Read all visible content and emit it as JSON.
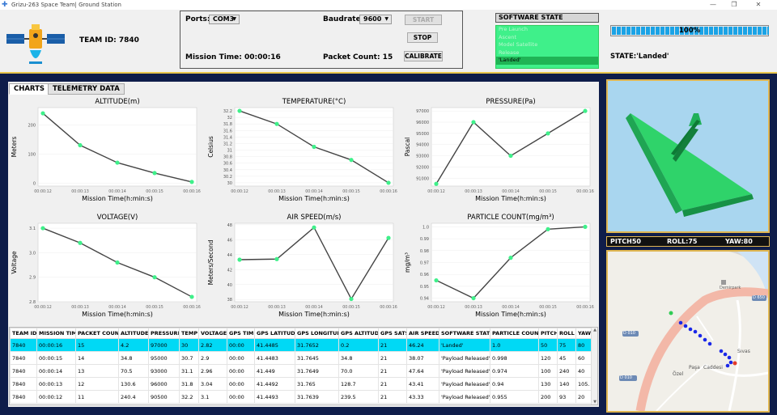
{
  "window": {
    "title": "Grizu-263 Space Team| Ground Station"
  },
  "header": {
    "team_label": "TEAM ID: 7840",
    "ports_label": "Ports:",
    "port_value": "COM3",
    "baud_label": "Baudrate:",
    "baud_value": "9600",
    "start_label": "START",
    "stop_label": "STOP",
    "calibrate_label": "CALIBRATE",
    "mission_time": "Mission Time:  00:00:16",
    "packet_count": "Packet Count:  15"
  },
  "software_state": {
    "title": "SOFTWARE STATE",
    "items": [
      "Pre Launch",
      "Ascent",
      "Model Satellite",
      "Release",
      "'Landed'"
    ],
    "active_index": 4
  },
  "progress": {
    "value": 100,
    "text": "100%"
  },
  "state_text": "STATE:'Landed'",
  "tabs": [
    "CHARTS",
    "TELEMETRY DATA"
  ],
  "chart_data": [
    {
      "type": "line",
      "title": "ALTITUDE(m)",
      "xlabel": "Mission Time(h:min:s)",
      "ylabel": "Meters",
      "x": [
        "00:00:12",
        "00:00:13",
        "00:00:14",
        "00:00:15",
        "00:00:16"
      ],
      "y": [
        240.4,
        130.6,
        70.5,
        34.8,
        4.2
      ],
      "ylim": [
        -10,
        260
      ],
      "yticks": [
        0,
        100,
        200
      ],
      "ytick_labels": [
        "0",
        "100",
        "200"
      ]
    },
    {
      "type": "line",
      "title": "TEMPERATURE(°C)",
      "xlabel": "Mission Time(h:min:s)",
      "ylabel": "Celsius",
      "x": [
        "00:00:12",
        "00:00:13",
        "00:00:14",
        "00:00:15",
        "00:00:16"
      ],
      "y": [
        32.2,
        31.8,
        31.1,
        30.7,
        30
      ],
      "ylim": [
        29.9,
        32.3
      ],
      "yticks": [
        30,
        30.2,
        30.4,
        30.6,
        30.8,
        31,
        31.2,
        31.4,
        31.6,
        31.8,
        32,
        32.2
      ],
      "ytick_labels": [
        "30",
        "30.2",
        "30.4",
        "30.6",
        "30.8",
        "31",
        "31.2",
        "31.4",
        "31.6",
        "31.8",
        "32",
        "32.2"
      ]
    },
    {
      "type": "line",
      "title": "PRESSURE(Pa)",
      "xlabel": "Mission Time(h:min:s)",
      "ylabel": "Pascal",
      "x": [
        "00:00:12",
        "00:00:13",
        "00:00:14",
        "00:00:15",
        "00:00:16"
      ],
      "y": [
        90500,
        96000,
        93000,
        95000,
        97000
      ],
      "ylim": [
        90300,
        97300
      ],
      "yticks": [
        91000,
        92000,
        93000,
        94000,
        95000,
        96000,
        97000
      ],
      "ytick_labels": [
        "91000",
        "92000",
        "93000",
        "94000",
        "95000",
        "96000",
        "97000"
      ]
    },
    {
      "type": "line",
      "title": "VOLTAGE(V)",
      "xlabel": "Mission Time(h:min:s)",
      "ylabel": "Voltage",
      "x": [
        "00:00:12",
        "00:00:13",
        "00:00:14",
        "00:00:15",
        "00:00:16"
      ],
      "y": [
        3.1,
        3.04,
        2.96,
        2.9,
        2.82
      ],
      "ylim": [
        2.8,
        3.12
      ],
      "yticks": [
        2.8,
        2.9,
        3.0,
        3.1
      ],
      "ytick_labels": [
        "2.8",
        "2.9",
        "3.0",
        "3.1"
      ]
    },
    {
      "type": "line",
      "title": "AIR SPEED(m/s)",
      "xlabel": "Mission Time(h:min:s)",
      "ylabel": "Meters/Second",
      "x": [
        "00:00:12",
        "00:00:13",
        "00:00:14",
        "00:00:15",
        "00:00:16"
      ],
      "y": [
        43.33,
        43.41,
        47.64,
        38.07,
        46.24
      ],
      "ylim": [
        37.7,
        48.2
      ],
      "yticks": [
        38,
        40,
        42,
        44,
        46,
        48
      ],
      "ytick_labels": [
        "38",
        "40",
        "42",
        "44",
        "46",
        "48"
      ]
    },
    {
      "type": "line",
      "title": "PARTICLE COUNT(mg/m³)",
      "xlabel": "Mission Time(h:min:s)",
      "ylabel": "mg/m³",
      "x": [
        "00:00:12",
        "00:00:13",
        "00:00:14",
        "00:00:15",
        "00:00:16"
      ],
      "y": [
        0.955,
        0.94,
        0.974,
        0.998,
        1.0
      ],
      "ylim": [
        0.937,
        1.003
      ],
      "yticks": [
        0.94,
        0.95,
        0.96,
        0.97,
        0.98,
        0.99,
        1.0
      ],
      "ytick_labels": [
        "0.94",
        "0.95",
        "0.96",
        "0.97",
        "0.98",
        "0.99",
        "1.0"
      ]
    }
  ],
  "table": {
    "columns": [
      "TEAM ID",
      "MISSION TIME",
      "PACKET COUNT",
      "ALTITUDE",
      "PRESSURE",
      "TEMP",
      "VOLTAGE",
      "GPS TIME",
      "GPS LATITUDE",
      "GPS LONGITUDE",
      "GPS ALTITUDE",
      "GPS SATS",
      "AIR SPEED",
      "SOFTWARE STATE",
      "PARTICLE COUNT",
      "PITCH",
      "ROLL",
      "YAW"
    ],
    "rows": [
      [
        "7840",
        "00:00:16",
        "15",
        "4.2",
        "97000",
        "30",
        "2.82",
        "00:00",
        "41.4485",
        "31.7652",
        "0.2",
        "21",
        "46.24",
        "'Landed'",
        "1.0",
        "50",
        "75",
        "80"
      ],
      [
        "7840",
        "00:00:15",
        "14",
        "34.8",
        "95000",
        "30.7",
        "2.9",
        "00:00",
        "41.4483",
        "31.7645",
        "34.8",
        "21",
        "38.07",
        "'Payload Released'",
        "0.998",
        "120",
        "45",
        "60"
      ],
      [
        "7840",
        "00:00:14",
        "13",
        "70.5",
        "93000",
        "31.1",
        "2.96",
        "00:00",
        "41.449",
        "31.7649",
        "70.0",
        "21",
        "47.64",
        "'Payload Released'",
        "0.974",
        "100",
        "240",
        "40"
      ],
      [
        "7840",
        "00:00:13",
        "12",
        "130.6",
        "96000",
        "31.8",
        "3.04",
        "00:00",
        "41.4492",
        "31.765",
        "128.7",
        "21",
        "43.41",
        "'Payload Released'",
        "0.94",
        "130",
        "140",
        "105."
      ],
      [
        "7840",
        "00:00:12",
        "11",
        "240.4",
        "90500",
        "32.2",
        "3.1",
        "00:00",
        "41.4493",
        "31.7639",
        "239.5",
        "21",
        "43.33",
        "'Payload Released'",
        "0.955",
        "200",
        "93",
        "20"
      ]
    ]
  },
  "orientation": {
    "pitch": "PITCH50",
    "roll": "ROLL:75",
    "yaw": "YAW:80"
  },
  "map": {
    "labels": [
      "Demirpark",
      "Paşa",
      "Caddesi",
      "Özel",
      "Sıvas"
    ],
    "road_badges": [
      "D 010",
      "D 010",
      "D 650"
    ]
  },
  "colors": {
    "accent": "#0f1d4a",
    "highlight_row": "#00d9f5",
    "plot_point": "#3ff08a",
    "border_gold": "#e0b651"
  }
}
